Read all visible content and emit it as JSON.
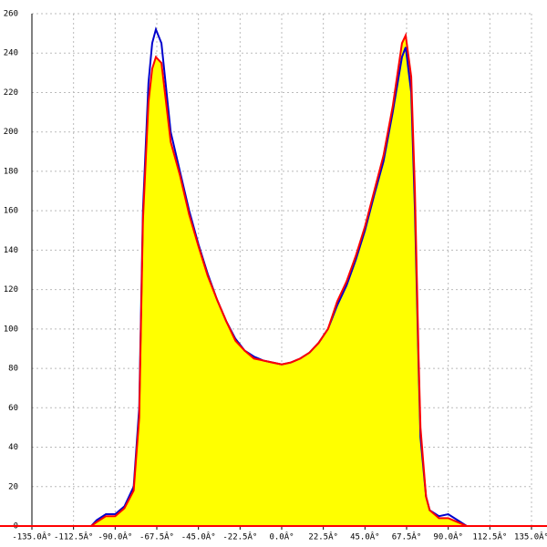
{
  "chart_data": {
    "type": "line",
    "x": [
      -103,
      -100,
      -95,
      -90,
      -85,
      -80,
      -77,
      -75,
      -72,
      -70,
      -68,
      -65,
      -60,
      -55,
      -50,
      -45,
      -40,
      -35,
      -30,
      -25,
      -20,
      -15,
      -10,
      -5,
      0,
      5,
      10,
      15,
      20,
      25,
      30,
      35,
      40,
      45,
      50,
      55,
      60,
      65,
      67,
      70,
      72,
      74,
      75,
      78,
      80,
      85,
      90,
      95,
      100
    ],
    "series": [
      {
        "color": "#0000cc",
        "values": [
          0,
          3,
          6,
          6,
          10,
          20,
          60,
          160,
          225,
          245,
          252,
          245,
          200,
          180,
          160,
          143,
          128,
          115,
          104,
          95,
          89,
          86,
          84,
          83,
          82,
          83,
          85,
          88,
          93,
          100,
          112,
          122,
          135,
          150,
          168,
          185,
          210,
          238,
          243,
          220,
          160,
          80,
          45,
          15,
          8,
          5,
          6,
          3,
          0
        ]
      },
      {
        "color": "#ff0000",
        "fill": "#ffff00",
        "values": [
          0,
          2,
          5,
          5,
          9,
          18,
          55,
          155,
          215,
          232,
          238,
          235,
          195,
          178,
          158,
          142,
          127,
          115,
          104,
          94,
          89,
          85,
          84,
          83,
          82,
          83,
          85,
          88,
          93,
          100,
          114,
          124,
          137,
          152,
          170,
          188,
          213,
          245,
          249,
          228,
          170,
          85,
          50,
          15,
          8,
          4,
          4,
          2,
          0
        ]
      }
    ],
    "xlim": [
      -135,
      135
    ],
    "xticks": [
      {
        "value": -135,
        "label": "-135.0Â°"
      },
      {
        "value": -112.5,
        "label": "-112.5Â°"
      },
      {
        "value": -90,
        "label": "-90.0Â°"
      },
      {
        "value": -67.5,
        "label": "-67.5Â°"
      },
      {
        "value": -45,
        "label": "-45.0Â°"
      },
      {
        "value": -22.5,
        "label": "-22.5Â°"
      },
      {
        "value": 0,
        "label": "0.0Â°"
      },
      {
        "value": 22.5,
        "label": "22.5Â°"
      },
      {
        "value": 45,
        "label": "45.0Â°"
      },
      {
        "value": 67.5,
        "label": "67.5Â°"
      },
      {
        "value": 90,
        "label": "90.0Â°"
      },
      {
        "value": 112.5,
        "label": "112.5Â°"
      },
      {
        "value": 135,
        "label": "135.0Â°"
      }
    ],
    "ylim": [
      0,
      260
    ],
    "yticks": [
      0,
      20,
      40,
      60,
      80,
      100,
      120,
      140,
      160,
      180,
      200,
      220,
      240,
      260
    ],
    "grid": true
  }
}
